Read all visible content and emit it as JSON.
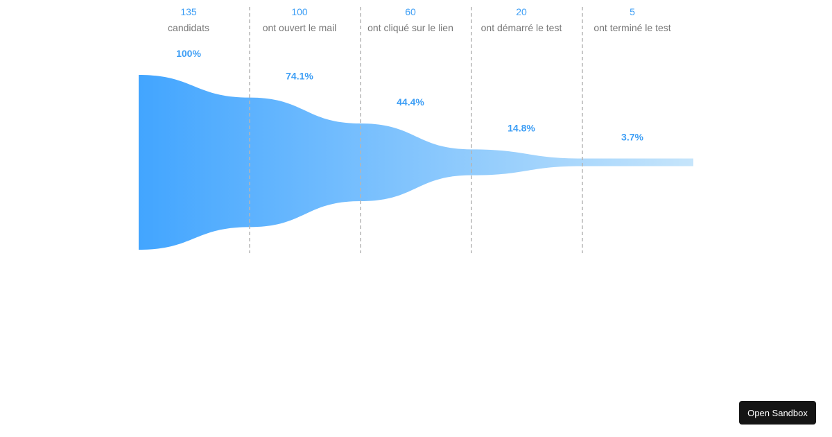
{
  "chart_data": {
    "type": "funnel",
    "stages": [
      {
        "value": 135,
        "label": "candidats",
        "percent": "100%"
      },
      {
        "value": 100,
        "label": "ont ouvert le mail",
        "percent": "74.1%"
      },
      {
        "value": 60,
        "label": "ont cliqué sur le lien",
        "percent": "44.4%"
      },
      {
        "value": 20,
        "label": "ont démarré le test",
        "percent": "14.8%"
      },
      {
        "value": 5,
        "label": "ont terminé le test",
        "percent": "3.7%"
      }
    ],
    "colors": {
      "start": "#42a5ff",
      "end": "#c6e5fb",
      "value_text": "#3d9ef5",
      "label_text": "#777777",
      "divider": "#b5b5b5"
    }
  },
  "sandbox_button": {
    "label": "Open Sandbox"
  }
}
